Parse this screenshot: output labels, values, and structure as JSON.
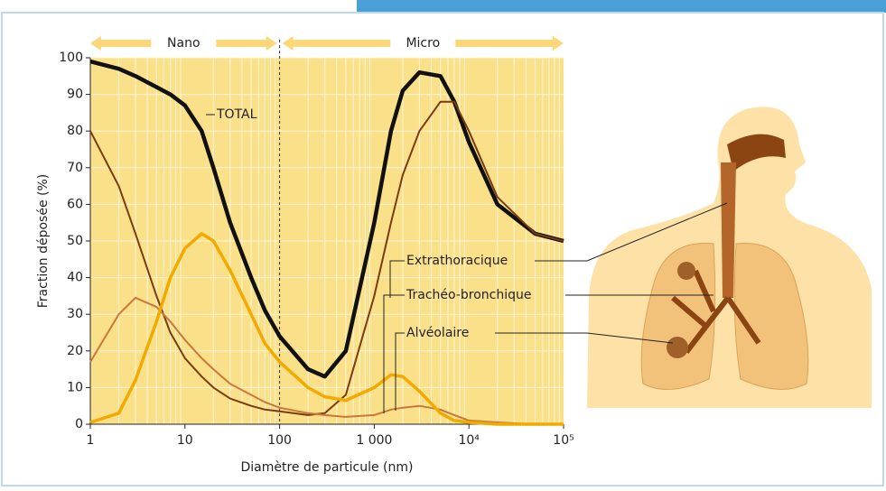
{
  "chart_data": {
    "type": "line",
    "x_label": "Diamètre de particule (nm)",
    "y_label": "Fraction déposée (%)",
    "annotations": [
      "Nano",
      "Micro"
    ],
    "xscale": "log",
    "grid": true,
    "xlim": [
      1,
      100000
    ],
    "ylim": [
      0,
      100
    ],
    "xticks": [
      1,
      10,
      100,
      {
        "value": 1000,
        "label": "1 000"
      },
      {
        "value": 10000,
        "label": "10⁴"
      },
      {
        "value": 100000,
        "label": "10⁵"
      }
    ],
    "yticks": [
      0,
      10,
      20,
      30,
      40,
      50,
      60,
      70,
      80,
      90,
      100
    ],
    "x": [
      1,
      2,
      3,
      5,
      7,
      10,
      15,
      20,
      30,
      50,
      70,
      100,
      200,
      300,
      500,
      1000,
      1500,
      2000,
      3000,
      5000,
      7000,
      10000,
      20000,
      50000,
      100000
    ],
    "series": [
      {
        "name": "TOTAL",
        "color": "#111111",
        "values": [
          99,
          97,
          95,
          92,
          90,
          87,
          80,
          70,
          55,
          40,
          31,
          24,
          15,
          13,
          20,
          55,
          80,
          91,
          96,
          95,
          88,
          77,
          60,
          52,
          50
        ]
      },
      {
        "name": "Extrathoracique",
        "color": "#7a3b10",
        "values": [
          80,
          65,
          52,
          35,
          25,
          18,
          13,
          10,
          7,
          5,
          4,
          3.5,
          2.5,
          3,
          8,
          35,
          55,
          68,
          80,
          88,
          88,
          80,
          62,
          52,
          50
        ]
      },
      {
        "name": "Trachéo-bronchique",
        "color": "#c8783a",
        "values": [
          17,
          30,
          34.5,
          32,
          28,
          23,
          18,
          15,
          11,
          8,
          6,
          4.5,
          3,
          2.5,
          2,
          2.5,
          4,
          4.5,
          5,
          4,
          2.5,
          1,
          0.5,
          0,
          0
        ]
      },
      {
        "name": "Alvéolaire",
        "color": "#f2a900",
        "values": [
          0.5,
          3,
          12,
          28,
          40,
          48,
          52,
          50,
          42,
          30,
          22,
          17,
          10,
          7.5,
          6.5,
          10,
          13.5,
          13,
          9,
          3,
          1,
          0.5,
          0,
          0,
          0
        ]
      }
    ]
  }
}
